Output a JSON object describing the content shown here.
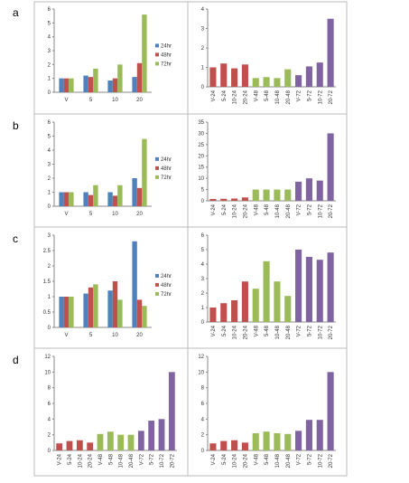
{
  "panel_labels": [
    "a",
    "b",
    "c",
    "d"
  ],
  "chart_data": [
    {
      "type": "grouped_bar",
      "categories": [
        "V",
        "5",
        "10",
        "20"
      ],
      "series": [
        {
          "name": "24hr",
          "color": "#4f81bd",
          "values": [
            1.0,
            1.2,
            0.85,
            1.1
          ]
        },
        {
          "name": "48hr",
          "color": "#c0504d",
          "values": [
            1.0,
            1.1,
            1.0,
            2.1
          ]
        },
        {
          "name": "72hr",
          "color": "#9bbb59",
          "values": [
            1.0,
            1.7,
            2.0,
            5.6
          ]
        }
      ],
      "ylim": [
        0,
        6
      ],
      "yticks": [
        0,
        1,
        2,
        3,
        4,
        5,
        6
      ]
    },
    {
      "type": "bar",
      "categories": [
        "V-24",
        "5-24",
        "10-24",
        "20-24",
        "V-48",
        "5-48",
        "10-48",
        "20-48",
        "V-72",
        "5-72",
        "10-72",
        "20-72"
      ],
      "values": [
        1.0,
        1.2,
        0.95,
        1.15,
        0.45,
        0.5,
        0.45,
        0.9,
        0.6,
        1.05,
        1.25,
        3.5
      ],
      "colors": [
        "#c0504d",
        "#c0504d",
        "#c0504d",
        "#c0504d",
        "#9bbb59",
        "#9bbb59",
        "#9bbb59",
        "#9bbb59",
        "#8064a2",
        "#8064a2",
        "#8064a2",
        "#8064a2"
      ],
      "ylim": [
        0,
        4
      ],
      "yticks": [
        0,
        1,
        2,
        3,
        4
      ]
    },
    {
      "type": "grouped_bar",
      "categories": [
        "V",
        "5",
        "10",
        "20"
      ],
      "series": [
        {
          "name": "24hr",
          "color": "#4f81bd",
          "values": [
            1.0,
            1.0,
            1.0,
            2.0
          ]
        },
        {
          "name": "48hr",
          "color": "#c0504d",
          "values": [
            1.0,
            0.8,
            0.75,
            1.3
          ]
        },
        {
          "name": "72hr",
          "color": "#9bbb59",
          "values": [
            1.0,
            1.5,
            1.5,
            4.8
          ]
        }
      ],
      "ylim": [
        0,
        6
      ],
      "yticks": [
        0,
        1,
        2,
        3,
        4,
        5,
        6
      ]
    },
    {
      "type": "bar",
      "categories": [
        "V-24",
        "5-24",
        "10-24",
        "20-24",
        "V-48",
        "5-48",
        "10-48",
        "20-48",
        "V-72",
        "5-72",
        "10-72",
        "20-72"
      ],
      "values": [
        0.8,
        0.9,
        1.0,
        1.5,
        5,
        5,
        5,
        5,
        8.5,
        10,
        9,
        30
      ],
      "colors": [
        "#c0504d",
        "#c0504d",
        "#c0504d",
        "#c0504d",
        "#9bbb59",
        "#9bbb59",
        "#9bbb59",
        "#9bbb59",
        "#8064a2",
        "#8064a2",
        "#8064a2",
        "#8064a2"
      ],
      "ylim": [
        0,
        35
      ],
      "yticks": [
        0,
        5,
        10,
        15,
        20,
        25,
        30,
        35
      ]
    },
    {
      "type": "grouped_bar",
      "categories": [
        "V",
        "5",
        "10",
        "20"
      ],
      "series": [
        {
          "name": "24hr",
          "color": "#4f81bd",
          "values": [
            1.0,
            1.1,
            1.2,
            2.8
          ]
        },
        {
          "name": "48hr",
          "color": "#c0504d",
          "values": [
            1.0,
            1.3,
            1.5,
            0.9
          ]
        },
        {
          "name": "72hr",
          "color": "#9bbb59",
          "values": [
            1.0,
            1.4,
            0.9,
            0.7
          ]
        }
      ],
      "ylim": [
        0,
        3
      ],
      "yticks": [
        0,
        0.5,
        1,
        1.5,
        2,
        2.5,
        3
      ]
    },
    {
      "type": "bar",
      "categories": [
        "V-24",
        "5-24",
        "10-24",
        "20-24",
        "V-48",
        "5-48",
        "10-48",
        "20-48",
        "V-72",
        "5-72",
        "10-72",
        "20-72"
      ],
      "values": [
        1.0,
        1.3,
        1.5,
        2.8,
        2.3,
        4.2,
        2.8,
        1.8,
        5.0,
        4.5,
        4.3,
        4.8
      ],
      "colors": [
        "#c0504d",
        "#c0504d",
        "#c0504d",
        "#c0504d",
        "#9bbb59",
        "#9bbb59",
        "#9bbb59",
        "#9bbb59",
        "#8064a2",
        "#8064a2",
        "#8064a2",
        "#8064a2"
      ],
      "ylim": [
        0,
        6
      ],
      "yticks": [
        0,
        1,
        2,
        3,
        4,
        5,
        6
      ]
    },
    {
      "type": "bar",
      "categories": [
        "V-24",
        "5-24",
        "10-24",
        "20-24",
        "V-48",
        "5-48",
        "10-48",
        "20-48",
        "V-72",
        "5-72",
        "10-72",
        "20-72"
      ],
      "values": [
        0.9,
        1.2,
        1.3,
        1.0,
        2.1,
        2.4,
        2.0,
        2.0,
        2.5,
        3.8,
        4.0,
        10.0
      ],
      "colors": [
        "#c0504d",
        "#c0504d",
        "#c0504d",
        "#c0504d",
        "#9bbb59",
        "#9bbb59",
        "#9bbb59",
        "#9bbb59",
        "#8064a2",
        "#8064a2",
        "#8064a2",
        "#8064a2"
      ],
      "ylim": [
        0,
        12
      ],
      "yticks": [
        0,
        2,
        4,
        6,
        8,
        10,
        12
      ]
    },
    {
      "type": "bar",
      "categories": [
        "V-24",
        "5-24",
        "10-24",
        "20-24",
        "V-48",
        "5-48",
        "10-48",
        "20-48",
        "V-72",
        "5-72",
        "10-72",
        "20-72"
      ],
      "values": [
        0.9,
        1.2,
        1.3,
        1.0,
        2.2,
        2.4,
        2.2,
        2.1,
        2.5,
        3.9,
        3.9,
        10.0
      ],
      "colors": [
        "#c0504d",
        "#c0504d",
        "#c0504d",
        "#c0504d",
        "#9bbb59",
        "#9bbb59",
        "#9bbb59",
        "#9bbb59",
        "#8064a2",
        "#8064a2",
        "#8064a2",
        "#8064a2"
      ],
      "ylim": [
        0,
        12
      ],
      "yticks": [
        0,
        2,
        4,
        6,
        8,
        10,
        12
      ]
    }
  ]
}
